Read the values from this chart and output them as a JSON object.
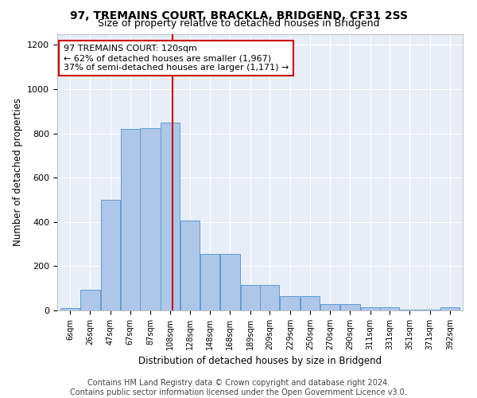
{
  "title1": "97, TREMAINS COURT, BRACKLA, BRIDGEND, CF31 2SS",
  "title2": "Size of property relative to detached houses in Bridgend",
  "xlabel": "Distribution of detached houses by size in Bridgend",
  "ylabel": "Number of detached properties",
  "footnote1": "Contains HM Land Registry data © Crown copyright and database right 2024.",
  "footnote2": "Contains public sector information licensed under the Open Government Licence v3.0.",
  "annotation_line1": "97 TREMAINS COURT: 120sqm",
  "annotation_line2": "← 62% of detached houses are smaller (1,967)",
  "annotation_line3": "37% of semi-detached houses are larger (1,171) →",
  "property_size": 120,
  "bar_left_edges": [
    6,
    26,
    47,
    67,
    87,
    108,
    128,
    148,
    168,
    189,
    209,
    229,
    250,
    270,
    290,
    311,
    331,
    351,
    371,
    392
  ],
  "bar_widths": [
    20,
    21,
    20,
    20,
    21,
    20,
    20,
    20,
    21,
    20,
    20,
    21,
    20,
    20,
    21,
    20,
    20,
    20,
    21,
    20
  ],
  "bar_heights": [
    10,
    95,
    500,
    820,
    825,
    850,
    405,
    255,
    255,
    115,
    115,
    65,
    65,
    30,
    30,
    15,
    15,
    3,
    3,
    15
  ],
  "bar_color": "#aec6e8",
  "bar_edge_color": "#5a9fd4",
  "vline_x": 120,
  "vline_color": "#cc0000",
  "annotation_box_edgecolor": "#cc0000",
  "fig_background": "#ffffff",
  "ax_background": "#e8eef8",
  "ylim": [
    0,
    1250
  ],
  "yticks": [
    0,
    200,
    400,
    600,
    800,
    1000,
    1200
  ],
  "title1_fontsize": 10,
  "title2_fontsize": 9,
  "xlabel_fontsize": 8.5,
  "ylabel_fontsize": 8.5,
  "tick_fontsize": 7,
  "footnote_fontsize": 7,
  "annot_fontsize": 8
}
